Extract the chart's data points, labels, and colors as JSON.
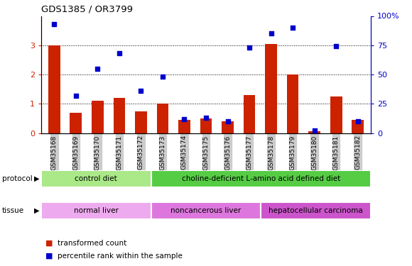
{
  "title": "GDS1385 / OR3799",
  "samples": [
    "GSM35168",
    "GSM35169",
    "GSM35170",
    "GSM35171",
    "GSM35172",
    "GSM35173",
    "GSM35174",
    "GSM35175",
    "GSM35176",
    "GSM35177",
    "GSM35178",
    "GSM35179",
    "GSM35180",
    "GSM35181",
    "GSM35182"
  ],
  "red_bars": [
    3.0,
    0.7,
    1.1,
    1.2,
    0.75,
    1.0,
    0.45,
    0.5,
    0.4,
    1.3,
    3.05,
    2.0,
    0.05,
    1.25,
    0.45
  ],
  "blue_dots": [
    93,
    32,
    55,
    68,
    36,
    48,
    12,
    13,
    10,
    73,
    85,
    90,
    2,
    74,
    10
  ],
  "ylim_left": [
    0,
    4
  ],
  "ylim_right": [
    0,
    100
  ],
  "yticks_left": [
    0,
    1,
    2,
    3
  ],
  "ytick_labels_left": [
    "0",
    "1",
    "2",
    "3"
  ],
  "yticks_right": [
    0,
    25,
    50,
    75,
    100
  ],
  "ytick_labels_right": [
    "0",
    "25",
    "50",
    "75",
    "100%"
  ],
  "bar_color": "#cc2200",
  "dot_color": "#0000cc",
  "protocol_groups": [
    {
      "label": "control diet",
      "start": 0,
      "end": 5,
      "color": "#aae888"
    },
    {
      "label": "choline-deficient L-amino acid defined diet",
      "start": 5,
      "end": 15,
      "color": "#55cc44"
    }
  ],
  "tissue_groups": [
    {
      "label": "normal liver",
      "start": 0,
      "end": 5,
      "color": "#eeaaee"
    },
    {
      "label": "noncancerous liver",
      "start": 5,
      "end": 10,
      "color": "#dd77dd"
    },
    {
      "label": "hepatocellular carcinoma",
      "start": 10,
      "end": 15,
      "color": "#cc55cc"
    }
  ],
  "legend_red_label": "transformed count",
  "legend_blue_label": "percentile rank within the sample",
  "background_color": "#ffffff",
  "left_axis_color": "#cc2200",
  "right_axis_color": "#0000cc",
  "xtick_bg_color": "#cccccc"
}
